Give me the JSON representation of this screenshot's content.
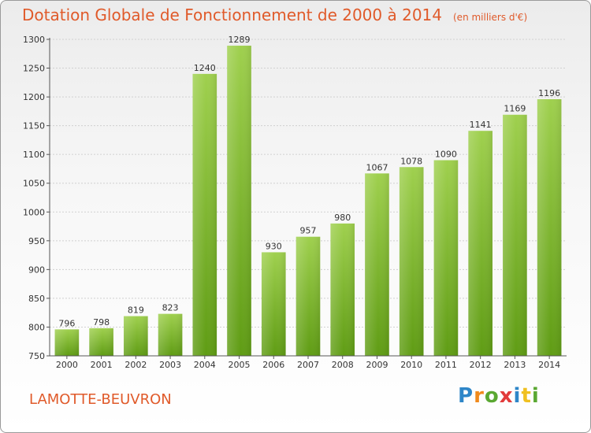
{
  "header": {
    "title": "Dotation Globale de Fonctionnement de 2000 à 2014",
    "unit": "(en milliers d'€)"
  },
  "footer": {
    "commune": "LAMOTTE-BEUVRON",
    "logo": "Proxiti"
  },
  "colors": {
    "accent": "#e05a2a",
    "bar_top": "#9fd04e",
    "bar_bottom": "#5f9c14",
    "gridline": "#d0d0d0",
    "axis": "#555555"
  },
  "chart_data": {
    "type": "bar",
    "title": "Dotation Globale de Fonctionnement de 2000 à 2014",
    "xlabel": "",
    "ylabel": "",
    "categories": [
      "2000",
      "2001",
      "2002",
      "2003",
      "2004",
      "2005",
      "2006",
      "2007",
      "2008",
      "2009",
      "2010",
      "2011",
      "2012",
      "2013",
      "2014"
    ],
    "values": [
      796,
      798,
      819,
      823,
      1240,
      1289,
      930,
      957,
      980,
      1067,
      1078,
      1090,
      1141,
      1169,
      1196
    ],
    "ylim": [
      750,
      1300
    ],
    "yticks": [
      750,
      800,
      850,
      900,
      950,
      1000,
      1050,
      1100,
      1150,
      1200,
      1250,
      1300
    ],
    "grid": true,
    "data_labels": true
  }
}
